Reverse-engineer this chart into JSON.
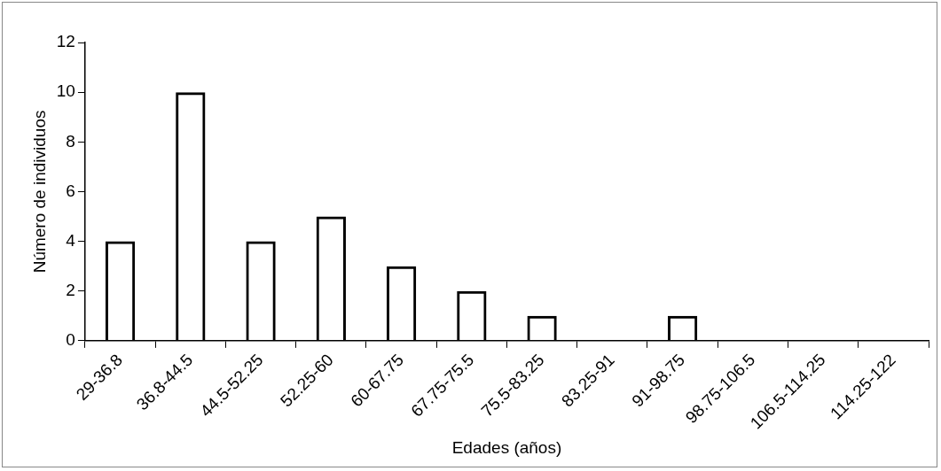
{
  "chart_data": {
    "type": "bar",
    "xlabel": "Edades (años)",
    "ylabel": "Número de individuos",
    "categories": [
      "29-36.8",
      "36.8-44.5",
      "44.5-52.25",
      "52.25-60",
      "60-67.75",
      "67.75-75.5",
      "75.5-83.25",
      "83.25-91",
      "91-98.75",
      "98.75-106.5",
      "106.5-114.25",
      "114.25-122"
    ],
    "values": [
      4,
      10,
      4,
      5,
      3,
      2,
      1,
      0,
      1,
      0,
      0,
      0
    ],
    "color": "#000000",
    "ylim": [
      0,
      12
    ],
    "yticks": [
      0,
      2,
      4,
      6,
      8,
      10,
      12
    ],
    "grid": false,
    "legend": false
  }
}
